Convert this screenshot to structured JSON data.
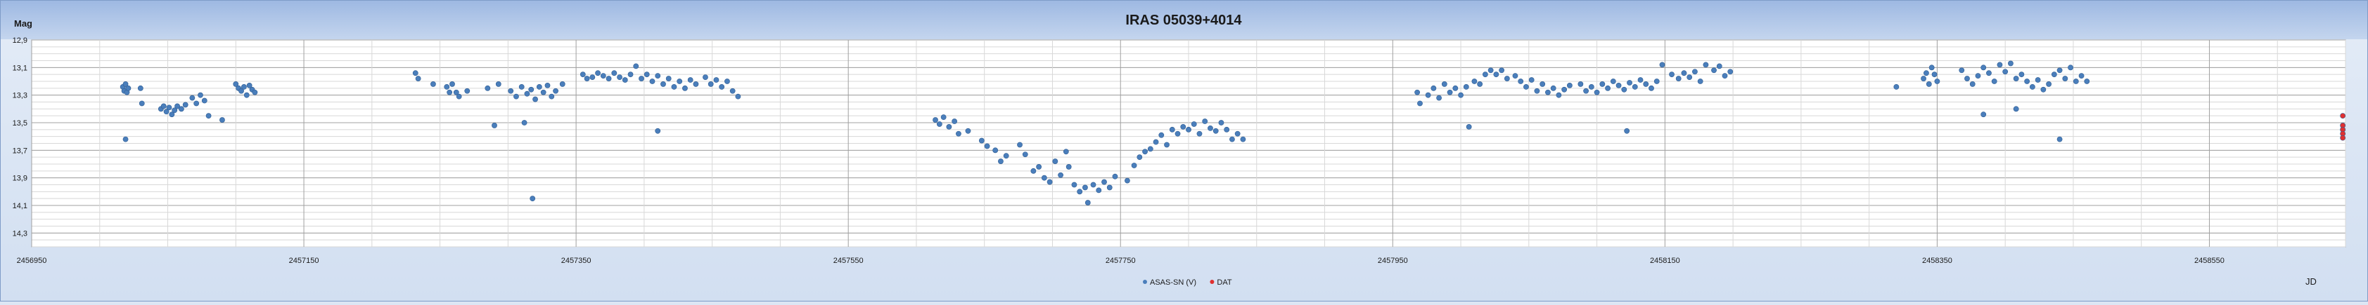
{
  "chart_data": {
    "type": "scatter",
    "title": "IRAS 05039+4014",
    "xlabel": "JD",
    "ylabel": "Mag",
    "xlim": [
      2456950,
      2458650
    ],
    "ylim": [
      14.4,
      12.9
    ],
    "y_inverted": true,
    "x_ticks": [
      2456950,
      2457150,
      2457350,
      2457550,
      2457750,
      2457950,
      2458150,
      2458350,
      2458550
    ],
    "x_tick_labels": [
      "2456950",
      "2457150",
      "2457350",
      "2457550",
      "2457750",
      "2457950",
      "2458150",
      "2458350",
      "2458550"
    ],
    "y_ticks": [
      12.9,
      13.1,
      13.3,
      13.5,
      13.7,
      13.9,
      14.1,
      14.3
    ],
    "y_tick_labels": [
      "12,9",
      "13,1",
      "13,3",
      "13,5",
      "13,7",
      "13,9",
      "14,1",
      "14,3"
    ],
    "grid": true,
    "legend_position": "bottom",
    "colors": {
      "plot_bg": "#ffffff",
      "outer_bg": "#dce6f4",
      "series_asas": "#4a7ebb",
      "series_dat": "#e03030",
      "grid_major": "#a0a0a0",
      "grid_minor": "#d8d8d8"
    },
    "series": [
      {
        "name": "ASAS-SN (V)",
        "marker": "circle",
        "color": "#4a7ebb",
        "points": [
          [
            2457017,
            13.24
          ],
          [
            2457018,
            13.27
          ],
          [
            2457019,
            13.22
          ],
          [
            2457020,
            13.28
          ],
          [
            2457021,
            13.25
          ],
          [
            2457019,
            13.62
          ],
          [
            2457030,
            13.25
          ],
          [
            2457031,
            13.36
          ],
          [
            2457045,
            13.4
          ],
          [
            2457047,
            13.38
          ],
          [
            2457049,
            13.42
          ],
          [
            2457051,
            13.39
          ],
          [
            2457053,
            13.44
          ],
          [
            2457055,
            13.41
          ],
          [
            2457057,
            13.38
          ],
          [
            2457060,
            13.4
          ],
          [
            2457063,
            13.37
          ],
          [
            2457068,
            13.32
          ],
          [
            2457071,
            13.36
          ],
          [
            2457074,
            13.3
          ],
          [
            2457077,
            13.34
          ],
          [
            2457080,
            13.45
          ],
          [
            2457090,
            13.48
          ],
          [
            2457100,
            13.22
          ],
          [
            2457102,
            13.25
          ],
          [
            2457104,
            13.27
          ],
          [
            2457106,
            13.24
          ],
          [
            2457108,
            13.3
          ],
          [
            2457110,
            13.23
          ],
          [
            2457112,
            13.26
          ],
          [
            2457114,
            13.28
          ],
          [
            2457232,
            13.14
          ],
          [
            2457234,
            13.18
          ],
          [
            2457245,
            13.22
          ],
          [
            2457255,
            13.24
          ],
          [
            2457257,
            13.28
          ],
          [
            2457259,
            13.22
          ],
          [
            2457262,
            13.28
          ],
          [
            2457264,
            13.31
          ],
          [
            2457270,
            13.27
          ],
          [
            2457285,
            13.25
          ],
          [
            2457290,
            13.52
          ],
          [
            2457293,
            13.22
          ],
          [
            2457302,
            13.27
          ],
          [
            2457306,
            13.31
          ],
          [
            2457310,
            13.24
          ],
          [
            2457314,
            13.29
          ],
          [
            2457317,
            13.26
          ],
          [
            2457320,
            13.33
          ],
          [
            2457323,
            13.24
          ],
          [
            2457326,
            13.28
          ],
          [
            2457329,
            13.23
          ],
          [
            2457332,
            13.31
          ],
          [
            2457335,
            13.27
          ],
          [
            2457312,
            13.5
          ],
          [
            2457318,
            14.05
          ],
          [
            2457340,
            13.22
          ],
          [
            2457355,
            13.15
          ],
          [
            2457358,
            13.18
          ],
          [
            2457362,
            13.17
          ],
          [
            2457366,
            13.14
          ],
          [
            2457370,
            13.16
          ],
          [
            2457374,
            13.18
          ],
          [
            2457378,
            13.14
          ],
          [
            2457382,
            13.17
          ],
          [
            2457386,
            13.19
          ],
          [
            2457390,
            13.15
          ],
          [
            2457394,
            13.09
          ],
          [
            2457398,
            13.18
          ],
          [
            2457402,
            13.15
          ],
          [
            2457406,
            13.2
          ],
          [
            2457410,
            13.16
          ],
          [
            2457414,
            13.22
          ],
          [
            2457418,
            13.18
          ],
          [
            2457422,
            13.24
          ],
          [
            2457426,
            13.2
          ],
          [
            2457430,
            13.25
          ],
          [
            2457434,
            13.19
          ],
          [
            2457438,
            13.22
          ],
          [
            2457410,
            13.56
          ],
          [
            2457445,
            13.17
          ],
          [
            2457449,
            13.22
          ],
          [
            2457453,
            13.19
          ],
          [
            2457457,
            13.24
          ],
          [
            2457461,
            13.2
          ],
          [
            2457465,
            13.27
          ],
          [
            2457469,
            13.31
          ],
          [
            2457614,
            13.48
          ],
          [
            2457617,
            13.51
          ],
          [
            2457620,
            13.46
          ],
          [
            2457624,
            13.53
          ],
          [
            2457628,
            13.49
          ],
          [
            2457631,
            13.58
          ],
          [
            2457638,
            13.56
          ],
          [
            2457648,
            13.63
          ],
          [
            2457652,
            13.67
          ],
          [
            2457658,
            13.7
          ],
          [
            2457662,
            13.78
          ],
          [
            2457666,
            13.74
          ],
          [
            2457676,
            13.66
          ],
          [
            2457680,
            13.73
          ],
          [
            2457686,
            13.85
          ],
          [
            2457690,
            13.82
          ],
          [
            2457694,
            13.9
          ],
          [
            2457698,
            13.93
          ],
          [
            2457702,
            13.78
          ],
          [
            2457706,
            13.88
          ],
          [
            2457710,
            13.71
          ],
          [
            2457712,
            13.82
          ],
          [
            2457716,
            13.95
          ],
          [
            2457720,
            14.0
          ],
          [
            2457724,
            13.97
          ],
          [
            2457726,
            14.08
          ],
          [
            2457730,
            13.95
          ],
          [
            2457734,
            13.99
          ],
          [
            2457738,
            13.93
          ],
          [
            2457742,
            13.97
          ],
          [
            2457746,
            13.89
          ],
          [
            2457755,
            13.92
          ],
          [
            2457760,
            13.81
          ],
          [
            2457764,
            13.75
          ],
          [
            2457768,
            13.71
          ],
          [
            2457772,
            13.69
          ],
          [
            2457776,
            13.64
          ],
          [
            2457780,
            13.59
          ],
          [
            2457784,
            13.66
          ],
          [
            2457788,
            13.55
          ],
          [
            2457792,
            13.58
          ],
          [
            2457796,
            13.53
          ],
          [
            2457800,
            13.55
          ],
          [
            2457804,
            13.51
          ],
          [
            2457808,
            13.58
          ],
          [
            2457812,
            13.49
          ],
          [
            2457816,
            13.54
          ],
          [
            2457820,
            13.56
          ],
          [
            2457824,
            13.5
          ],
          [
            2457828,
            13.55
          ],
          [
            2457832,
            13.62
          ],
          [
            2457836,
            13.58
          ],
          [
            2457840,
            13.62
          ],
          [
            2457968,
            13.28
          ],
          [
            2457970,
            13.36
          ],
          [
            2457976,
            13.3
          ],
          [
            2457980,
            13.25
          ],
          [
            2457984,
            13.32
          ],
          [
            2457988,
            13.22
          ],
          [
            2457992,
            13.28
          ],
          [
            2457996,
            13.25
          ],
          [
            2458000,
            13.3
          ],
          [
            2458004,
            13.24
          ],
          [
            2458006,
            13.53
          ],
          [
            2458010,
            13.2
          ],
          [
            2458014,
            13.22
          ],
          [
            2458018,
            13.15
          ],
          [
            2458022,
            13.12
          ],
          [
            2458026,
            13.15
          ],
          [
            2458030,
            13.12
          ],
          [
            2458034,
            13.18
          ],
          [
            2458040,
            13.16
          ],
          [
            2458044,
            13.2
          ],
          [
            2458048,
            13.24
          ],
          [
            2458052,
            13.19
          ],
          [
            2458056,
            13.27
          ],
          [
            2458060,
            13.22
          ],
          [
            2458064,
            13.28
          ],
          [
            2458068,
            13.25
          ],
          [
            2458072,
            13.3
          ],
          [
            2458076,
            13.26
          ],
          [
            2458080,
            13.23
          ],
          [
            2458088,
            13.22
          ],
          [
            2458092,
            13.27
          ],
          [
            2458096,
            13.24
          ],
          [
            2458100,
            13.28
          ],
          [
            2458104,
            13.22
          ],
          [
            2458108,
            13.25
          ],
          [
            2458112,
            13.2
          ],
          [
            2458116,
            13.23
          ],
          [
            2458120,
            13.26
          ],
          [
            2458124,
            13.21
          ],
          [
            2458128,
            13.24
          ],
          [
            2458132,
            13.19
          ],
          [
            2458136,
            13.22
          ],
          [
            2458140,
            13.25
          ],
          [
            2458144,
            13.2
          ],
          [
            2458148,
            13.08
          ],
          [
            2458122,
            13.56
          ],
          [
            2458155,
            13.15
          ],
          [
            2458160,
            13.18
          ],
          [
            2458164,
            13.14
          ],
          [
            2458168,
            13.17
          ],
          [
            2458172,
            13.13
          ],
          [
            2458176,
            13.2
          ],
          [
            2458180,
            13.08
          ],
          [
            2458186,
            13.12
          ],
          [
            2458190,
            13.09
          ],
          [
            2458194,
            13.16
          ],
          [
            2458198,
            13.13
          ],
          [
            2458320,
            13.24
          ],
          [
            2458340,
            13.18
          ],
          [
            2458342,
            13.14
          ],
          [
            2458344,
            13.22
          ],
          [
            2458346,
            13.1
          ],
          [
            2458348,
            13.15
          ],
          [
            2458350,
            13.2
          ],
          [
            2458368,
            13.12
          ],
          [
            2458372,
            13.18
          ],
          [
            2458376,
            13.22
          ],
          [
            2458380,
            13.16
          ],
          [
            2458384,
            13.1
          ],
          [
            2458388,
            13.14
          ],
          [
            2458392,
            13.2
          ],
          [
            2458396,
            13.08
          ],
          [
            2458400,
            13.13
          ],
          [
            2458404,
            13.07
          ],
          [
            2458408,
            13.18
          ],
          [
            2458412,
            13.15
          ],
          [
            2458416,
            13.2
          ],
          [
            2458420,
            13.24
          ],
          [
            2458424,
            13.19
          ],
          [
            2458428,
            13.26
          ],
          [
            2458432,
            13.22
          ],
          [
            2458436,
            13.15
          ],
          [
            2458440,
            13.12
          ],
          [
            2458444,
            13.18
          ],
          [
            2458448,
            13.1
          ],
          [
            2458452,
            13.2
          ],
          [
            2458456,
            13.16
          ],
          [
            2458460,
            13.2
          ],
          [
            2458384,
            13.44
          ],
          [
            2458408,
            13.4
          ],
          [
            2458440,
            13.62
          ]
        ]
      },
      {
        "name": "DAT",
        "marker": "circle",
        "color": "#e03030",
        "points": [
          [
            2458648,
            13.45
          ],
          [
            2458648,
            13.52
          ],
          [
            2458648,
            13.55
          ],
          [
            2458648,
            13.58
          ],
          [
            2458648,
            13.61
          ]
        ]
      }
    ]
  }
}
